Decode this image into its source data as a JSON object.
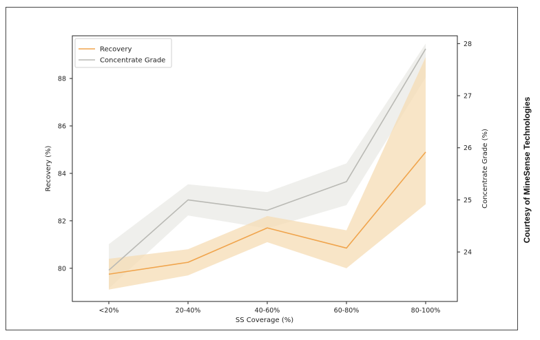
{
  "credit": "Courtesy of MineSense Technologies",
  "chart_data": {
    "type": "line",
    "title": "",
    "categories": [
      "<20%",
      "20-40%",
      "40-60%",
      "60-80%",
      "80-100%"
    ],
    "xlabel": "SS Coverage (%)",
    "ylabel": "Recovery (%)",
    "y2label": "Concentrate Grade (%)",
    "ylim": [
      78.6,
      89.8
    ],
    "y2lim": [
      23.05,
      28.15
    ],
    "yticks": [
      80,
      82,
      84,
      86,
      88
    ],
    "y2ticks": [
      24,
      25,
      26,
      27,
      28
    ],
    "grid": false,
    "legend_position": "top-left",
    "series": [
      {
        "name": "Recovery",
        "axis": "left",
        "color": "#f0a44c",
        "band_color": "#f6dcb4",
        "values": [
          79.75,
          80.25,
          81.7,
          80.85,
          84.9
        ],
        "lower": [
          79.1,
          79.7,
          81.1,
          80.0,
          82.7
        ],
        "upper": [
          80.4,
          80.8,
          82.2,
          81.6,
          88.9
        ]
      },
      {
        "name": "Concentrate Grade",
        "axis": "right",
        "color": "#b9b9b4",
        "band_color": "#e9e9e6",
        "values": [
          23.65,
          25.0,
          24.8,
          25.35,
          27.9
        ],
        "lower": [
          23.3,
          24.7,
          24.45,
          24.9,
          27.35
        ],
        "upper": [
          24.15,
          25.3,
          25.15,
          25.7,
          28.0
        ]
      }
    ]
  }
}
